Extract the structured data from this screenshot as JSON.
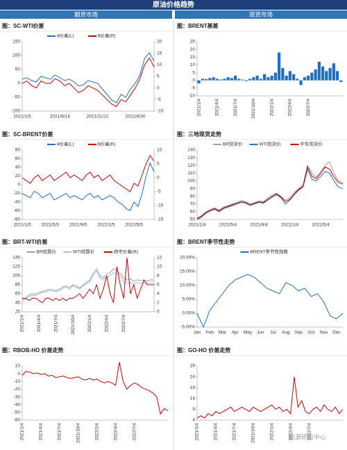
{
  "header": {
    "title": "原油价格趋势",
    "left": "期货市场",
    "right": "现货市场"
  },
  "watermark": "能源研投中心",
  "chart_data": [
    {
      "type": "line",
      "title": "图：SC-WTI价差",
      "legend": true,
      "categories": [
        "2021/1/5",
        null,
        null,
        null,
        null,
        null,
        null,
        null,
        "2021/6/14",
        null,
        null,
        null,
        null,
        null,
        null,
        null,
        "2021/11/21",
        null,
        null,
        null,
        null,
        null,
        null,
        null,
        "2022/4/30",
        null,
        null,
        null,
        null
      ],
      "series": [
        {
          "name": "¥价差(L)",
          "color": "#1f6fbf",
          "values": [
            15,
            20,
            10,
            5,
            25,
            20,
            15,
            30,
            20,
            10,
            15,
            5,
            -10,
            -5,
            10,
            5,
            0,
            -20,
            -40,
            -60,
            -70,
            -40,
            -50,
            -20,
            0,
            30,
            90,
            110,
            80
          ]
        },
        {
          "name": "$价差(R)",
          "color": "#c00000",
          "axis": "y2",
          "values": [
            2,
            3,
            1,
            0,
            3,
            2,
            2,
            4,
            3,
            1,
            2,
            0,
            -2,
            -1,
            1,
            0,
            -1,
            -3,
            -5,
            -7,
            -8,
            -5,
            -6,
            -3,
            0,
            4,
            10,
            13,
            9
          ]
        }
      ],
      "ylim": [
        -100,
        150
      ],
      "yticks": [
        -100,
        -50,
        0,
        50,
        100,
        150
      ],
      "y2lim": [
        -10,
        20
      ],
      "y2ticks": [
        -10,
        -5,
        0,
        5,
        10,
        15,
        20
      ]
    },
    {
      "type": "bar",
      "title": "图：BRENT基差",
      "legend": false,
      "categories": [
        "2021/1/4",
        null,
        null,
        null,
        null,
        "2021/4/4",
        null,
        null,
        null,
        null,
        "2021/7/4",
        null,
        null,
        null,
        null,
        "2021/10/4",
        null,
        null,
        null,
        null,
        "2022/1/4",
        null,
        null,
        null,
        null,
        "2022/4/4",
        null,
        null,
        null,
        null,
        "2022/7/4",
        null,
        null,
        null,
        null,
        null,
        null,
        null,
        null,
        null
      ],
      "series": [
        {
          "name": "BRENT基差",
          "color": "#1f6fbf",
          "values": [
            -2,
            1,
            0.8,
            1.5,
            2,
            1,
            0.5,
            1,
            2,
            1.5,
            3,
            1,
            0.5,
            -0.5,
            1,
            2,
            3,
            1,
            4,
            2,
            3,
            5,
            18,
            8,
            3,
            6,
            4,
            1,
            -3,
            2,
            3,
            5,
            7,
            12,
            9,
            6,
            8,
            11,
            6,
            -1
          ]
        }
      ],
      "ylim": [
        -10,
        25
      ],
      "yticks": [
        -10,
        -5,
        0,
        5,
        10,
        15,
        20,
        25
      ]
    },
    {
      "type": "line",
      "title": "图：SC-BRENT价差",
      "legend": true,
      "categories": [
        "2021/1/5",
        null,
        null,
        null,
        null,
        null,
        null,
        "2021/5/5",
        null,
        null,
        null,
        null,
        null,
        null,
        "2021/9/5",
        null,
        null,
        null,
        null,
        null,
        null,
        "2022/1/5",
        null,
        null,
        null,
        null,
        null,
        null,
        "2022/5/5",
        null,
        null,
        null,
        null,
        null
      ],
      "series": [
        {
          "name": "¥价差(L)",
          "color": "#1f6fbf",
          "values": [
            -20,
            -25,
            -30,
            -15,
            -20,
            -30,
            -25,
            -20,
            -35,
            -30,
            -25,
            -20,
            -30,
            -25,
            -30,
            -35,
            -25,
            -20,
            -30,
            -25,
            -35,
            -30,
            -25,
            -30,
            -40,
            -45,
            -55,
            -60,
            -40,
            -50,
            -20,
            20,
            50,
            30
          ]
        },
        {
          "name": "$价差(R)",
          "color": "#c00000",
          "axis": "y2",
          "values": [
            0,
            -1,
            -2,
            0,
            1,
            -1,
            0,
            1,
            -1,
            0,
            1,
            2,
            0,
            1,
            0,
            -1,
            1,
            2,
            0,
            1,
            -1,
            0,
            1,
            -1,
            -2,
            -3,
            -4,
            -5,
            -2,
            -3,
            1,
            5,
            8,
            6
          ]
        }
      ],
      "ylim": [
        -80,
        80
      ],
      "yticks": [
        -80,
        -60,
        -40,
        -20,
        0,
        20,
        40,
        60,
        80
      ],
      "y2lim": [
        -15,
        10
      ],
      "y2ticks": [
        -15,
        -10,
        -5,
        0,
        5,
        10
      ]
    },
    {
      "type": "line",
      "title": "图：三地现货走势",
      "legend": true,
      "categories": [
        "2021/1/4",
        null,
        null,
        null,
        null,
        null,
        null,
        "2021/5/4",
        null,
        null,
        null,
        null,
        null,
        null,
        "2021/9/4",
        null,
        null,
        null,
        null,
        null,
        null,
        "2022/1/4",
        null,
        null,
        null,
        null,
        null,
        null,
        "2022/5/4",
        null,
        null,
        null,
        null,
        null
      ],
      "series": [
        {
          "name": "BR现货价",
          "color": "#a0a0a0",
          "values": [
            52,
            55,
            60,
            63,
            65,
            62,
            66,
            68,
            70,
            72,
            75,
            73,
            70,
            72,
            74,
            73,
            78,
            82,
            84,
            80,
            75,
            78,
            85,
            90,
            95,
            120,
            110,
            105,
            112,
            120,
            125,
            110,
            100,
            98
          ]
        },
        {
          "name": "WTI现货价",
          "color": "#2f6fc4",
          "values": [
            50,
            53,
            58,
            61,
            63,
            60,
            64,
            66,
            68,
            70,
            72,
            71,
            68,
            70,
            72,
            71,
            75,
            79,
            82,
            78,
            70,
            75,
            82,
            88,
            92,
            115,
            102,
            100,
            106,
            112,
            110,
            100,
            92,
            90
          ]
        },
        {
          "name": "中东现货价",
          "color": "#c00000",
          "values": [
            51,
            54,
            59,
            62,
            64,
            61,
            65,
            67,
            69,
            71,
            73,
            72,
            69,
            71,
            73,
            72,
            76,
            80,
            83,
            79,
            73,
            76,
            83,
            89,
            93,
            118,
            106,
            103,
            110,
            118,
            115,
            105,
            98,
            96
          ]
        }
      ],
      "ylim": [
        50,
        140
      ],
      "yticks": [
        50,
        60,
        70,
        80,
        90,
        100,
        110,
        120,
        130,
        140
      ]
    },
    {
      "type": "line",
      "title": "图：BRT-WTI价差",
      "legend": true,
      "categories": [
        "2021/1/4",
        null,
        null,
        null,
        null,
        "2021/4/4",
        null,
        null,
        null,
        null,
        "2021/7/4",
        null,
        null,
        null,
        null,
        "2021/10/4",
        null,
        null,
        null,
        null,
        "2022/1/4",
        null,
        null,
        null,
        null,
        "2022/4/4",
        null,
        null,
        null,
        null,
        "2022/7/4",
        null,
        null,
        null,
        null,
        null,
        null,
        null,
        null,
        null
      ],
      "series": [
        {
          "name": "BR结算价",
          "color": "#a0a0a0",
          "values": [
            52,
            55,
            62,
            65,
            64,
            68,
            70,
            72,
            75,
            74,
            72,
            75,
            80,
            82,
            78,
            85,
            82,
            78,
            85,
            90,
            95,
            110,
            120,
            105,
            100,
            108,
            112,
            120,
            115,
            110,
            100,
            95,
            98,
            92,
            96,
            94,
            95,
            93,
            96,
            95
          ]
        },
        {
          "name": "WTI结算价",
          "color": "#9dc3e6",
          "values": [
            50,
            52,
            59,
            62,
            61,
            65,
            68,
            69,
            72,
            71,
            69,
            72,
            77,
            80,
            75,
            82,
            79,
            75,
            82,
            87,
            91,
            106,
            115,
            100,
            96,
            102,
            105,
            112,
            108,
            104,
            92,
            88,
            90,
            86,
            90,
            88,
            89,
            87,
            90,
            89
          ]
        },
        {
          "name": "跨市价差(R)",
          "color": "#c00000",
          "axis": "y2",
          "values": [
            3,
            3,
            2.5,
            3,
            3,
            2.5,
            2,
            3,
            3,
            2.5,
            3,
            2.5,
            3,
            2.5,
            3,
            3,
            3.5,
            4,
            3,
            4,
            5,
            4,
            6,
            3,
            5,
            8,
            4,
            2,
            10,
            6,
            3,
            12,
            4,
            6,
            3,
            5,
            7,
            6,
            6,
            6
          ]
        }
      ],
      "ylim": [
        25,
        145
      ],
      "yticks": [
        25,
        45,
        65,
        85,
        105,
        125,
        145
      ],
      "y2lim": [
        0,
        12
      ],
      "y2ticks": [
        0,
        2,
        4,
        6,
        8,
        10,
        12
      ]
    },
    {
      "type": "line",
      "title": "图：BRENT季节性走势",
      "legend": true,
      "categories": [
        "Jan",
        null,
        "Feb",
        null,
        "Mar",
        null,
        "Apr",
        null,
        "May",
        null,
        "Jun",
        null,
        "Jul",
        null,
        "Aug",
        null,
        "Sep",
        null,
        "Oct",
        null,
        "Nov",
        null,
        "Dec",
        null
      ],
      "series": [
        {
          "name": "BRENT季节性指数",
          "color": "#1f6fbf",
          "values": [
            0,
            -5,
            1,
            4,
            7,
            10,
            12,
            13,
            14,
            13,
            11,
            9,
            8,
            7,
            11,
            10,
            8,
            9,
            6,
            7,
            4,
            -1,
            -2,
            0
          ]
        }
      ],
      "ylim": [
        -5,
        20
      ],
      "yticks": [
        {
          "value": -5,
          "label": "-5.00%"
        },
        {
          "value": 0,
          "label": "0.00%"
        },
        {
          "value": 5,
          "label": "5.00%"
        },
        {
          "value": 10,
          "label": "10.00%"
        },
        {
          "value": 15,
          "label": "15.00%"
        },
        {
          "value": 20,
          "label": "20.00%"
        }
      ]
    },
    {
      "type": "line",
      "title": "图：RBOB-HO 价差走势",
      "legend": false,
      "categories": [
        "2021/1/4",
        null,
        null,
        null,
        null,
        "2021/4/4",
        null,
        null,
        null,
        null,
        "2021/7/4",
        null,
        null,
        null,
        null,
        "2021/10/4",
        null,
        null,
        null,
        null,
        "2022/1/4",
        null,
        null,
        null,
        null,
        "2022/4/4",
        null,
        null,
        null,
        null,
        "2022/7/4",
        null,
        null,
        null,
        null,
        null,
        null,
        null,
        null,
        null
      ],
      "series": [
        {
          "name": "RBOB-HO",
          "color": "#c00000",
          "values": [
            -2,
            3,
            2,
            0,
            1,
            -1,
            0,
            -3,
            -2,
            -5,
            -4,
            -3,
            -5,
            -6,
            -5,
            -4,
            -7,
            -8,
            -6,
            -8,
            -7,
            -10,
            -12,
            -10,
            -12,
            -15,
            15,
            -10,
            -20,
            -15,
            -12,
            -14,
            -18,
            -20,
            -22,
            -25,
            -30,
            -52,
            -45,
            -48
          ]
        }
      ],
      "ylim": [
        -60,
        10
      ],
      "yticks": [
        -60,
        -50,
        -40,
        -30,
        -20,
        -10,
        0,
        10
      ]
    },
    {
      "type": "line",
      "title": "图：GO-HO 价差走势",
      "legend": false,
      "categories": [
        "2021/1/4",
        null,
        null,
        null,
        null,
        "2021/4/4",
        null,
        null,
        null,
        null,
        "2021/7/4",
        null,
        null,
        null,
        null,
        "2021/10/4",
        null,
        null,
        null,
        null,
        "2022/1/4",
        null,
        null,
        null,
        null,
        "2022/4/4",
        null,
        null,
        null,
        null,
        "2022/7/4",
        null,
        null,
        null,
        null,
        null,
        null,
        null,
        null,
        null
      ],
      "series": [
        {
          "name": "GO-HO",
          "color": "#c00000",
          "values": [
            5,
            6,
            5,
            7,
            6,
            8,
            7,
            8,
            9,
            10,
            8,
            9,
            10,
            9,
            8,
            10,
            9,
            8,
            9,
            10,
            11,
            9,
            10,
            8,
            9,
            7,
            24,
            10,
            13,
            8,
            7,
            9,
            10,
            8,
            11,
            9,
            8,
            10,
            7,
            9
          ]
        }
      ],
      "ylim": [
        4,
        29
      ],
      "yticks": [
        4,
        9,
        14,
        19,
        24,
        29
      ]
    }
  ]
}
